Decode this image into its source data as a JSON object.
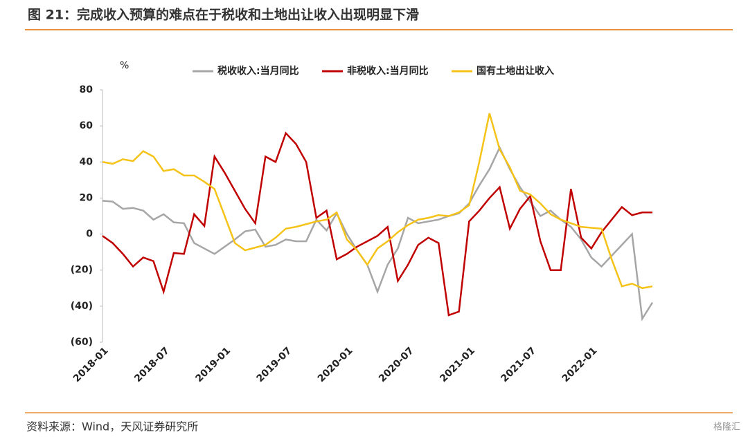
{
  "title": "图 21：完成收入预算的难点在于税收和土地出让收入出现明显下滑",
  "source": "资料来源：Wind，天风证券研究所",
  "watermark": "格隆汇",
  "chart_data": {
    "type": "line",
    "y_label": "%",
    "categories": [
      "2018-01",
      null,
      null,
      null,
      null,
      null,
      "2018-07",
      null,
      null,
      null,
      null,
      null,
      "2019-01",
      null,
      null,
      null,
      null,
      null,
      "2019-07",
      null,
      null,
      null,
      null,
      null,
      "2020-01",
      null,
      null,
      null,
      null,
      null,
      "2020-07",
      null,
      null,
      null,
      null,
      null,
      "2021-01",
      null,
      null,
      null,
      null,
      null,
      "2021-07",
      null,
      null,
      null,
      null,
      null,
      "2022-01",
      null,
      null,
      null,
      null,
      null,
      null
    ],
    "series": [
      {
        "name": "税收收入:当月同比",
        "color": "#a6a6a6",
        "values": [
          18.5,
          18,
          14,
          14.5,
          13,
          8,
          11,
          6.5,
          6,
          -5,
          -8,
          -11,
          -7,
          -3,
          1.5,
          2.5,
          -7,
          -6,
          -3,
          -4,
          -4,
          8,
          2,
          11.5,
          0,
          -9,
          -17,
          -32,
          -17,
          -8,
          9,
          6,
          7,
          8,
          10,
          11.5,
          17,
          27,
          36,
          48,
          36,
          26,
          18,
          10,
          13,
          8,
          4,
          -3,
          -13,
          -18,
          -12,
          -6,
          0,
          -47,
          -38
        ]
      },
      {
        "name": "非税收入:当月同比",
        "color": "#c00000",
        "values": [
          -1,
          -5,
          -11,
          -18,
          -13,
          -15,
          -32,
          -10.5,
          -11,
          11,
          4.5,
          43,
          34,
          24,
          14,
          6,
          43,
          40,
          56,
          50,
          40,
          9,
          13,
          -14,
          -11,
          -7,
          -4,
          -1,
          4,
          -26,
          -17,
          -6,
          -2,
          -5,
          -45,
          -43,
          7,
          13,
          20,
          26,
          3,
          14,
          21,
          -4,
          -20,
          -20,
          25,
          -2,
          -8,
          1,
          8,
          15,
          10.5,
          12,
          12
        ]
      },
      {
        "name": "国有土地出让收入",
        "color": "#f5c218",
        "values": [
          40,
          39,
          41.5,
          40.5,
          46,
          43,
          35,
          36,
          32.5,
          32.5,
          29,
          25,
          10,
          -5,
          -9,
          -7.5,
          -6,
          -2,
          3,
          4,
          5.5,
          7,
          8,
          12,
          -3,
          -9,
          -17,
          -8,
          -4,
          1,
          5,
          8,
          9,
          10.5,
          10,
          12,
          16,
          40,
          67,
          47,
          37,
          24,
          22,
          17,
          11,
          8,
          6,
          4,
          3.5,
          3,
          -14,
          -29,
          -27.5,
          -30,
          -29
        ]
      }
    ],
    "ylim": [
      -60,
      80
    ],
    "yticks": [
      {
        "value": -60,
        "label": "(60)"
      },
      {
        "value": -40,
        "label": "(40)"
      },
      {
        "value": -20,
        "label": "(20)"
      },
      0,
      20,
      40,
      60,
      80
    ]
  }
}
